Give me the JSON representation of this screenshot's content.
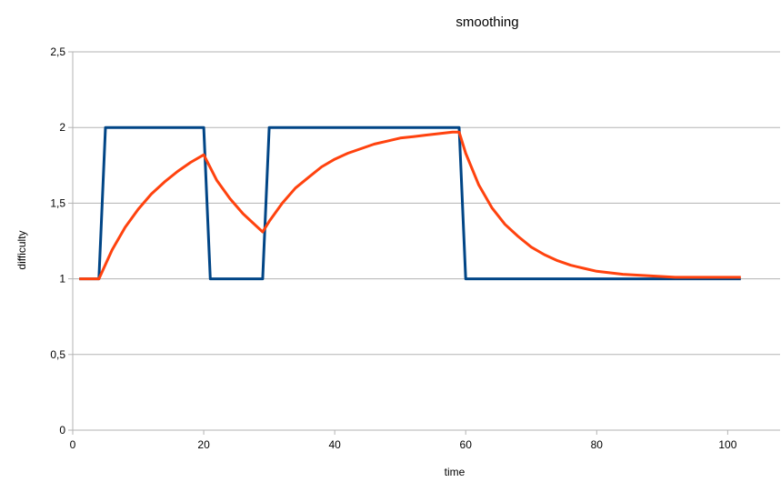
{
  "chart_data": {
    "type": "line",
    "title": "smoothing",
    "xlabel": "time",
    "ylabel": "difficulty",
    "xlim": [
      0,
      108
    ],
    "ylim": [
      0,
      2.5
    ],
    "x_ticks": [
      0,
      20,
      40,
      60,
      80,
      100
    ],
    "y_ticks": [
      0,
      0.5,
      1,
      1.5,
      2,
      2.5
    ],
    "x_tick_labels": [
      "0",
      "20",
      "40",
      "60",
      "80",
      "100"
    ],
    "y_tick_labels": [
      "0",
      "0,5",
      "1",
      "1,5",
      "2",
      "2,5"
    ],
    "grid": "horizontal",
    "legend": "none",
    "series": [
      {
        "color": "#004586",
        "x": [
          1,
          4,
          5,
          20,
          21,
          29,
          30,
          59,
          60,
          102
        ],
        "values": [
          1,
          1,
          2,
          2,
          1,
          1,
          2,
          2,
          1,
          1
        ]
      },
      {
        "color": "#ff420e",
        "x": [
          1,
          4,
          6,
          8,
          10,
          12,
          14,
          16,
          18,
          20,
          22,
          24,
          26,
          28,
          29,
          30,
          32,
          34,
          36,
          38,
          40,
          42,
          44,
          46,
          48,
          50,
          52,
          54,
          56,
          58,
          59,
          60,
          62,
          64,
          66,
          68,
          70,
          72,
          74,
          76,
          78,
          80,
          84,
          88,
          92,
          96,
          100,
          102
        ],
        "values": [
          1,
          1,
          1.19,
          1.34,
          1.46,
          1.56,
          1.64,
          1.71,
          1.77,
          1.82,
          1.65,
          1.53,
          1.43,
          1.35,
          1.31,
          1.38,
          1.5,
          1.6,
          1.67,
          1.74,
          1.79,
          1.83,
          1.86,
          1.89,
          1.91,
          1.93,
          1.94,
          1.95,
          1.96,
          1.97,
          1.97,
          1.83,
          1.62,
          1.47,
          1.36,
          1.28,
          1.21,
          1.16,
          1.12,
          1.09,
          1.07,
          1.05,
          1.03,
          1.02,
          1.01,
          1.01,
          1.01,
          1.01
        ]
      }
    ]
  }
}
